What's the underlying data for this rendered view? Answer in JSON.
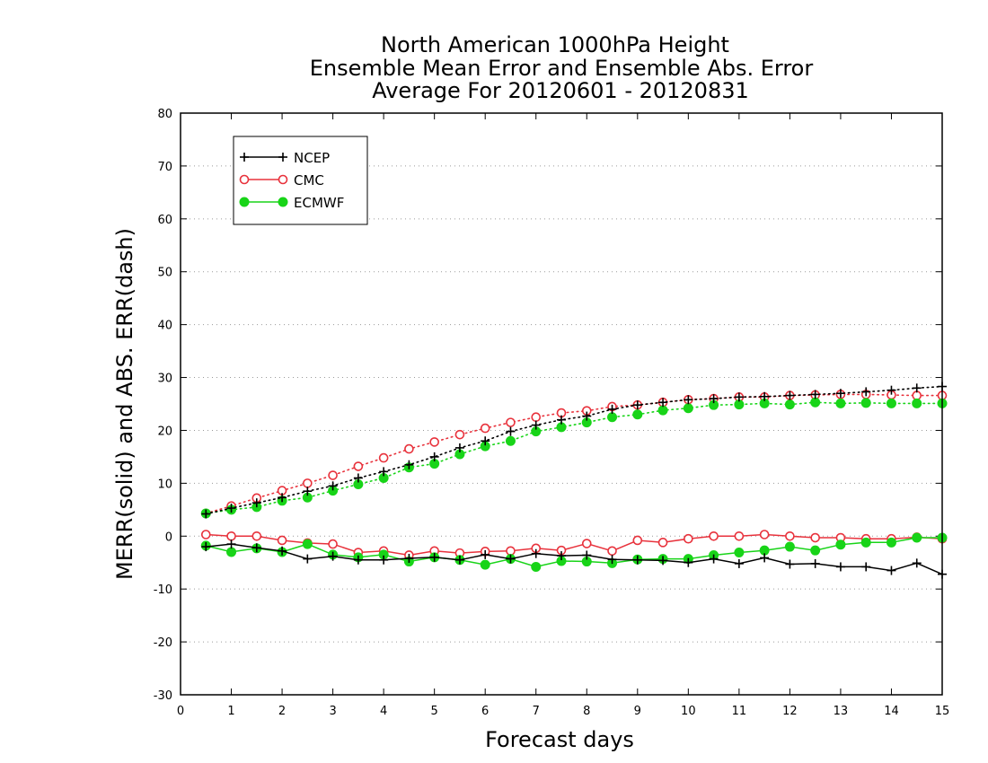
{
  "chart_data": {
    "type": "line",
    "title": [
      "North American 1000hPa Height",
      "Ensemble Mean Error and Ensemble Abs. Error",
      "Average For 20120601 - 20120831"
    ],
    "xlabel": "Forecast days",
    "ylabel": "MERR(solid) and ABS. ERR(dash)",
    "xlim": [
      0,
      15
    ],
    "ylim": [
      -30,
      80
    ],
    "xticks": [
      0,
      1,
      2,
      3,
      4,
      5,
      6,
      7,
      8,
      9,
      10,
      11,
      12,
      13,
      14,
      15
    ],
    "yticks": [
      -30,
      -20,
      -10,
      0,
      10,
      20,
      30,
      40,
      50,
      60,
      70,
      80
    ],
    "grid": "horizontal dotted",
    "legend_position": "top-left",
    "x": [
      0.5,
      1,
      1.5,
      2,
      2.5,
      3,
      3.5,
      4,
      4.5,
      5,
      5.5,
      6,
      6.5,
      7,
      7.5,
      8,
      8.5,
      9,
      9.5,
      10,
      10.5,
      11,
      11.5,
      12,
      12.5,
      13,
      13.5,
      14,
      14.5,
      15
    ],
    "series": [
      {
        "name": "NCEP",
        "color": "#000000",
        "marker": "plus",
        "merr": [
          -2,
          -1.5,
          -2.2,
          -2.8,
          -4.3,
          -3.8,
          -4.5,
          -4.5,
          -4.2,
          -4,
          -4.5,
          -3.5,
          -4.3,
          -3.3,
          -3.7,
          -3.6,
          -4.4,
          -4.5,
          -4.6,
          -5,
          -4.3,
          -5.2,
          -4.1,
          -5.3,
          -5.2,
          -5.8,
          -5.8,
          -6.5,
          -5.1,
          -7.2
        ],
        "abs": [
          4.2,
          5.3,
          6.3,
          7.3,
          8.5,
          9.5,
          11,
          12.2,
          13.5,
          15,
          16.7,
          18,
          19.8,
          21,
          22,
          22.7,
          24,
          24.8,
          25.3,
          25.8,
          26,
          26.3,
          26.4,
          26.6,
          26.8,
          27,
          27.3,
          27.6,
          28,
          28.3
        ]
      },
      {
        "name": "CMC",
        "color": "#e8323c",
        "marker": "open-circle",
        "merr": [
          0.3,
          0,
          0,
          -0.8,
          -1.3,
          -1.5,
          -3.1,
          -2.8,
          -3.6,
          -2.8,
          -3.2,
          -2.9,
          -2.8,
          -2.3,
          -2.7,
          -1.4,
          -2.8,
          -0.8,
          -1.2,
          -0.5,
          0,
          0,
          0.3,
          0,
          -0.3,
          -0.3,
          -0.5,
          -0.5,
          -0.2,
          -0.5
        ],
        "abs": [
          4.3,
          5.7,
          7.2,
          8.6,
          10,
          11.5,
          13.2,
          14.8,
          16.5,
          17.8,
          19.2,
          20.4,
          21.5,
          22.5,
          23.3,
          23.7,
          24.5,
          24.8,
          25.3,
          25.8,
          26,
          26.3,
          26.3,
          26.6,
          26.7,
          26.8,
          26.8,
          26.7,
          26.6,
          26.6
        ]
      },
      {
        "name": "ECMWF",
        "color": "#18d418",
        "marker": "filled-circle",
        "merr": [
          -1.8,
          -3,
          -2.3,
          -3,
          -1.5,
          -3.5,
          -4,
          -3.5,
          -4.8,
          -4,
          -4.5,
          -5.4,
          -4.3,
          -5.8,
          -4.7,
          -4.8,
          -5.1,
          -4.4,
          -4.3,
          -4.3,
          -3.6,
          -3.1,
          -2.7,
          -2,
          -2.7,
          -1.6,
          -1.2,
          -1.2,
          -0.3,
          -0.3
        ],
        "abs": [
          4.3,
          5,
          5.5,
          6.7,
          7.3,
          8.6,
          9.8,
          11,
          13,
          13.7,
          15.5,
          17,
          18,
          19.8,
          20.6,
          21.5,
          22.5,
          23,
          23.8,
          24.2,
          24.8,
          24.9,
          25.1,
          24.9,
          25.3,
          25.1,
          25.2,
          25.1,
          25.1,
          25.1
        ]
      }
    ]
  }
}
